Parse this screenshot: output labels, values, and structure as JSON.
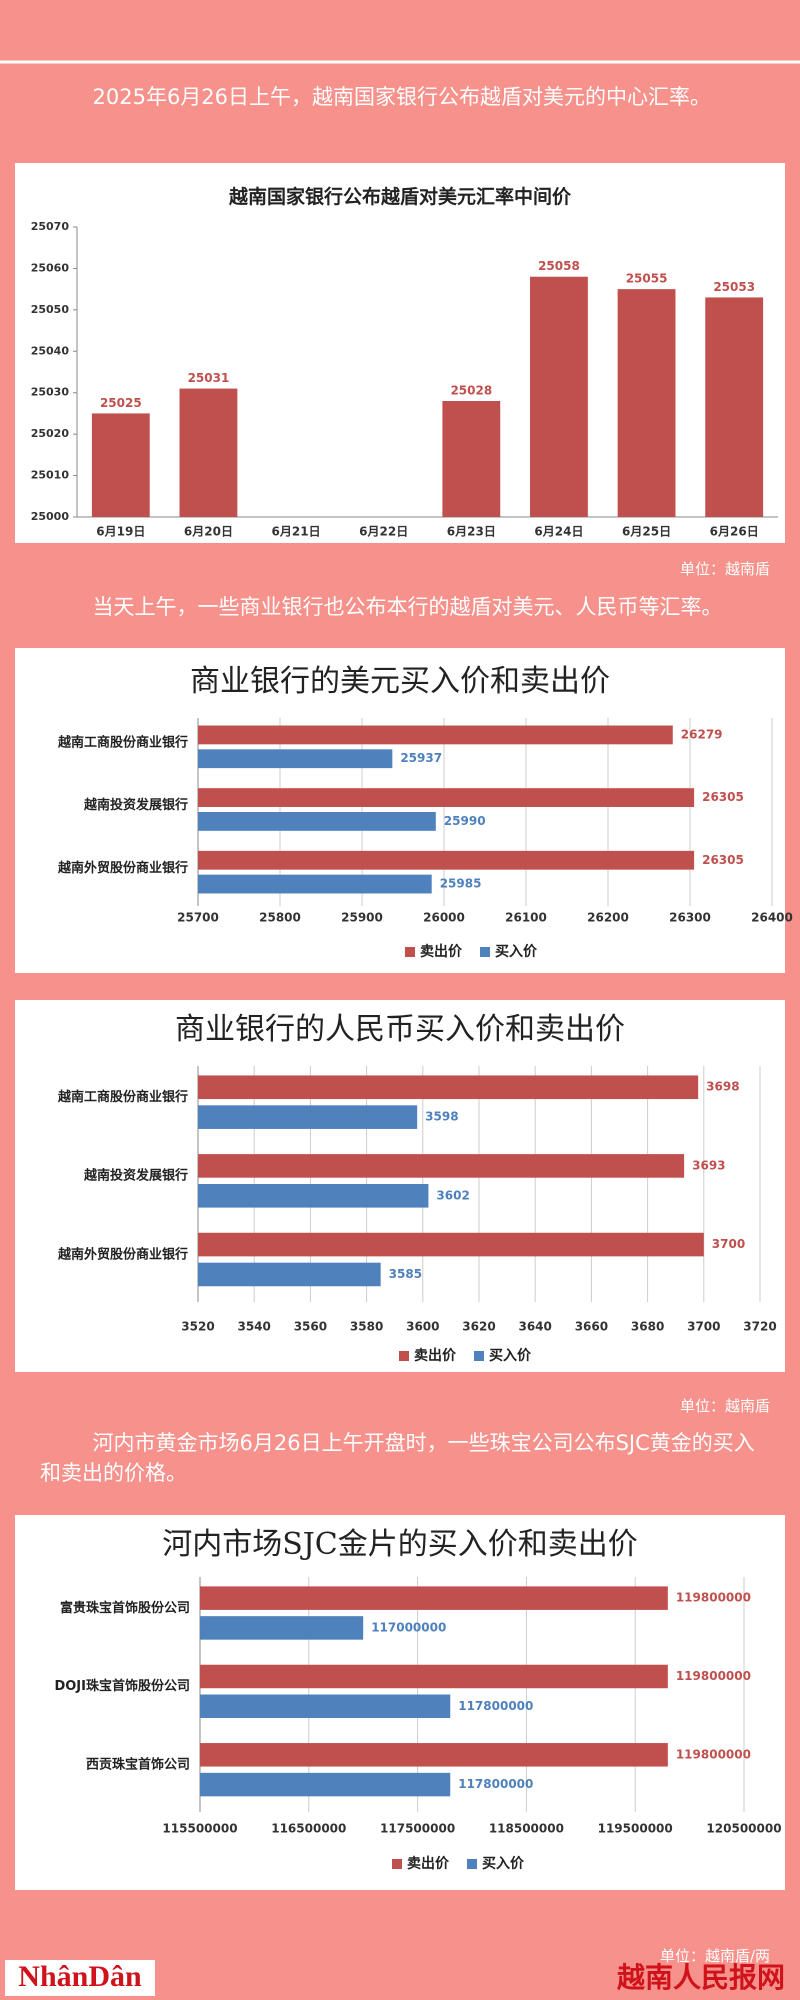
{
  "paragraphs": [
    "2025年6月26日上午，越南国家银行公布越盾对美元的中心汇率。",
    "当天上午，一些商业银行也公布本行的越盾对美元、人民币等汇率。",
    "河内市黄金市场6月26日上午开盘时，一些珠宝公司公布SJC黄金的买入和卖出的价格。"
  ],
  "units": [
    "单位：越南盾",
    "单位：越南盾",
    "单位：越南盾/两"
  ],
  "footer": {
    "logo": "NhânDân",
    "site": "越南人民报网"
  },
  "chart_data": [
    {
      "type": "bar",
      "title": "越南国家银行公布越盾对美元汇率中间价",
      "categories": [
        "6月19日",
        "6月20日",
        "6月21日",
        "6月22日",
        "6月23日",
        "6月24日",
        "6月25日",
        "6月26日"
      ],
      "values": [
        25025,
        25031,
        null,
        null,
        25028,
        25058,
        25055,
        25053
      ],
      "color": "#c0504d",
      "ylim": [
        25000,
        25070
      ],
      "yticks": [
        25000,
        25010,
        25020,
        25030,
        25040,
        25050,
        25060,
        25070
      ],
      "grid": false
    },
    {
      "type": "barh",
      "title": "商业银行的美元买入价和卖出价",
      "categories": [
        "越南工商股份商业银行",
        "越南投资发展银行",
        "越南外贸股份商业银行"
      ],
      "series": [
        {
          "name": "卖出价",
          "color": "#c0504d",
          "values": [
            26279,
            26305,
            26305
          ]
        },
        {
          "name": "买入价",
          "color": "#4f81bd",
          "values": [
            25937,
            25990,
            25985
          ]
        }
      ],
      "xlim": [
        25700,
        26400
      ],
      "xticks": [
        25700,
        25800,
        25900,
        26000,
        26100,
        26200,
        26300,
        26400
      ],
      "grid": true,
      "legend": "bottom"
    },
    {
      "type": "barh",
      "title": "商业银行的人民币买入价和卖出价",
      "categories": [
        "越南工商股份商业银行",
        "越南投资发展银行",
        "越南外贸股份商业银行"
      ],
      "series": [
        {
          "name": "卖出价",
          "color": "#c0504d",
          "values": [
            3698,
            3693,
            3700
          ]
        },
        {
          "name": "买入价",
          "color": "#4f81bd",
          "values": [
            3598,
            3602,
            3585
          ]
        }
      ],
      "xlim": [
        3520,
        3720
      ],
      "xticks": [
        3520,
        3540,
        3560,
        3580,
        3600,
        3620,
        3640,
        3660,
        3680,
        3700,
        3720
      ],
      "grid": true,
      "legend": "bottom"
    },
    {
      "type": "barh",
      "title": "河内市场SJC金片的买入价和卖出价",
      "categories": [
        "富贵珠宝首饰股份公司",
        "DOJI珠宝首饰股份公司",
        "西贡珠宝首饰公司"
      ],
      "series": [
        {
          "name": "卖出价",
          "color": "#c0504d",
          "values": [
            119800000,
            119800000,
            119800000
          ]
        },
        {
          "name": "买入价",
          "color": "#4f81bd",
          "values": [
            117000000,
            117800000,
            117800000
          ]
        }
      ],
      "xlim": [
        115500000,
        120500000
      ],
      "xticks": [
        115500000,
        116500000,
        117500000,
        118500000,
        119500000,
        120500000
      ],
      "grid": true,
      "legend": "bottom"
    }
  ]
}
